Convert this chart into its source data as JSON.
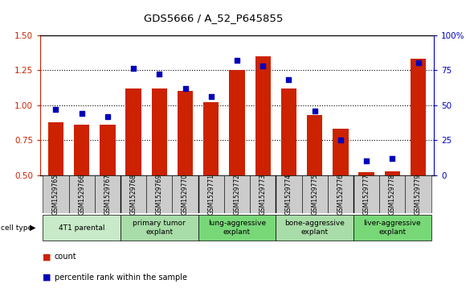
{
  "title": "GDS5666 / A_52_P645855",
  "samples": [
    "GSM1529765",
    "GSM1529766",
    "GSM1529767",
    "GSM1529768",
    "GSM1529769",
    "GSM1529770",
    "GSM1529771",
    "GSM1529772",
    "GSM1529773",
    "GSM1529774",
    "GSM1529775",
    "GSM1529776",
    "GSM1529777",
    "GSM1529778",
    "GSM1529779"
  ],
  "counts": [
    0.88,
    0.86,
    0.86,
    1.12,
    1.12,
    1.1,
    1.02,
    1.25,
    1.35,
    1.12,
    0.93,
    0.83,
    0.52,
    0.53,
    1.33
  ],
  "percentiles": [
    47,
    44,
    42,
    76,
    72,
    62,
    56,
    82,
    78,
    68,
    46,
    25,
    10,
    12,
    80
  ],
  "cell_types": [
    {
      "label": "4T1 parental",
      "start": 0,
      "end": 3,
      "color": "#c8eac8"
    },
    {
      "label": "primary tumor\nexplant",
      "start": 3,
      "end": 6,
      "color": "#a8dca8"
    },
    {
      "label": "lung-aggressive\nexplant",
      "start": 6,
      "end": 9,
      "color": "#78d878"
    },
    {
      "label": "bone-aggressive\nexplant",
      "start": 9,
      "end": 12,
      "color": "#a8dca8"
    },
    {
      "label": "liver-aggressive\nexplant",
      "start": 12,
      "end": 15,
      "color": "#78d878"
    }
  ],
  "bar_color": "#cc2200",
  "dot_color": "#0000bb",
  "ylim_left": [
    0.5,
    1.5
  ],
  "ylim_right": [
    0,
    100
  ],
  "yticks_left": [
    0.5,
    0.75,
    1.0,
    1.25,
    1.5
  ],
  "yticks_right": [
    0,
    25,
    50,
    75,
    100
  ],
  "legend_items": [
    "count",
    "percentile rank within the sample"
  ],
  "cell_type_label": "cell type"
}
